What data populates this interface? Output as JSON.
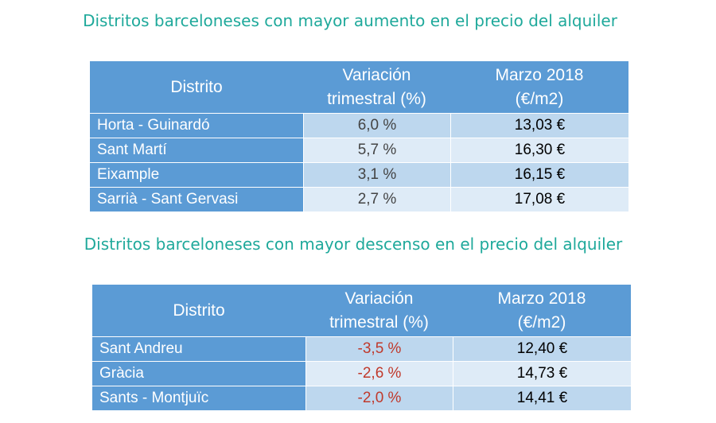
{
  "colors": {
    "title": "#1fa99b",
    "header": "#5b9bd5",
    "row_odd": "#bdd7ee",
    "row_even": "#deebf7",
    "negative": "#c0392b"
  },
  "increase": {
    "title": "Distritos barceloneses con mayor aumento en el precio del alquiler",
    "headers": {
      "district": "Distrito",
      "variation_1": "Variación",
      "variation_2": "trimestral (%)",
      "price_1": "Marzo 2018",
      "price_2": "(€/m2)"
    },
    "rows": [
      {
        "district": "Horta - Guinardó",
        "variation": "6,0 %",
        "price": "13,03 €"
      },
      {
        "district": "Sant Martí",
        "variation": "5,7 %",
        "price": "16,30 €"
      },
      {
        "district": "Eixample",
        "variation": "3,1 %",
        "price": "16,15 €"
      },
      {
        "district": "Sarrià - Sant Gervasi",
        "variation": "2,7 %",
        "price": "17,08 €"
      }
    ]
  },
  "decrease": {
    "title": "Distritos barceloneses con mayor descenso en el precio del alquiler",
    "headers": {
      "district": "Distrito",
      "variation_1": "Variación",
      "variation_2": "trimestral (%)",
      "price_1": "Marzo 2018",
      "price_2": "(€/m2)"
    },
    "rows": [
      {
        "district": "Sant Andreu",
        "variation": "-3,5 %",
        "price": "12,40 €"
      },
      {
        "district": "Gràcia",
        "variation": "-2,6 %",
        "price": "14,73 €"
      },
      {
        "district": "Sants - Montjuïc",
        "variation": "-2,0 %",
        "price": "14,41 €"
      }
    ]
  }
}
